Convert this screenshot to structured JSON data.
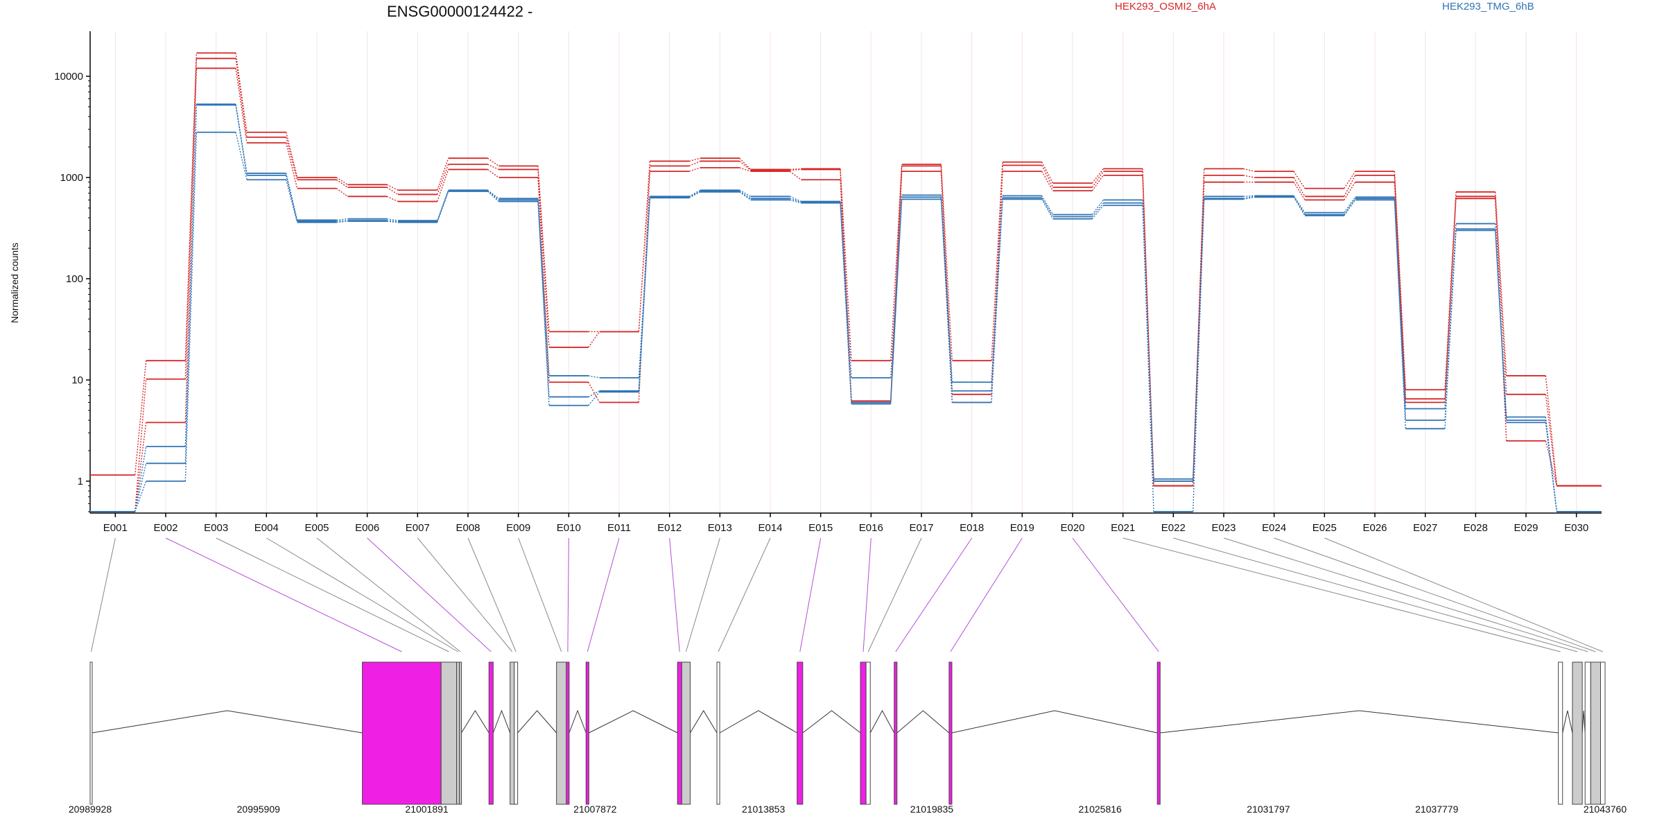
{
  "chart_data": {
    "type": "line",
    "title": "ENSG00000124422 -",
    "ylabel": "Normalized counts",
    "yscale": "log",
    "ylim": [
      0.45,
      25000
    ],
    "yticks": [
      1,
      10,
      100,
      1000,
      10000
    ],
    "ytick_labels": [
      "1",
      "10",
      "100",
      "1000",
      "10000"
    ],
    "legend": [
      {
        "name": "HEK293_OSMI2_6hA",
        "color": "#d62728"
      },
      {
        "name": "HEK293_TMG_6hB",
        "color": "#2f74b5"
      }
    ],
    "categories": [
      "E001",
      "E002",
      "E003",
      "E004",
      "E005",
      "E006",
      "E007",
      "E008",
      "E009",
      "E010",
      "E011",
      "E012",
      "E013",
      "E014",
      "E015",
      "E016",
      "E017",
      "E018",
      "E019",
      "E020",
      "E021",
      "E022",
      "E023",
      "E024",
      "E025",
      "E026",
      "E027",
      "E028",
      "E029",
      "E030"
    ],
    "series": [
      {
        "group": "HEK293_OSMI2_6hA",
        "color": "#d62728",
        "values": [
          1.15,
          15.5,
          17000,
          2800,
          1000,
          850,
          750,
          1550,
          1300,
          30,
          30,
          1450,
          1550,
          1200,
          1220,
          15.5,
          1350,
          15.5,
          1420,
          880,
          1220,
          1.0,
          1220,
          1150,
          780,
          1150,
          8.0,
          720,
          11,
          0.9
        ]
      },
      {
        "group": "HEK293_OSMI2_6hA",
        "color": "#d62728",
        "values": [
          0.5,
          10.2,
          15000,
          2500,
          950,
          800,
          680,
          1350,
          1200,
          21,
          30,
          1300,
          1450,
          1180,
          1200,
          6.2,
          1300,
          7.2,
          1320,
          800,
          1150,
          0.9,
          1050,
          1000,
          650,
          1050,
          6.5,
          650,
          7.2,
          0.9
        ]
      },
      {
        "group": "HEK293_OSMI2_6hA",
        "color": "#d62728",
        "values": [
          0.5,
          3.8,
          12000,
          2200,
          780,
          650,
          580,
          1200,
          1000,
          9.5,
          6.0,
          1150,
          1250,
          1150,
          950,
          6.0,
          1150,
          6.0,
          1150,
          740,
          1050,
          0.9,
          900,
          900,
          600,
          900,
          6.0,
          620,
          2.5,
          0.9
        ]
      },
      {
        "group": "HEK293_TMG_6hB",
        "color": "#2f74b5",
        "values": [
          0.5,
          2.2,
          5300,
          1100,
          380,
          390,
          375,
          750,
          620,
          11,
          10.5,
          650,
          750,
          650,
          580,
          10.5,
          670,
          9.5,
          660,
          430,
          600,
          1.05,
          650,
          660,
          450,
          640,
          5.2,
          350,
          4.3,
          0.5
        ]
      },
      {
        "group": "HEK293_TMG_6hB",
        "color": "#2f74b5",
        "values": [
          0.5,
          1.5,
          5200,
          1050,
          370,
          375,
          365,
          740,
          600,
          6.8,
          7.8,
          640,
          730,
          620,
          570,
          6.0,
          640,
          7.8,
          630,
          410,
          560,
          1.0,
          620,
          650,
          430,
          620,
          4.0,
          310,
          4.0,
          0.5
        ]
      },
      {
        "group": "HEK293_TMG_6hB",
        "color": "#2f74b5",
        "values": [
          0.5,
          1.0,
          2800,
          950,
          360,
          370,
          360,
          730,
          580,
          5.6,
          7.6,
          630,
          720,
          600,
          560,
          5.8,
          610,
          6.0,
          610,
          390,
          530,
          0.5,
          610,
          640,
          420,
          600,
          3.3,
          300,
          3.8,
          0.5
        ]
      }
    ],
    "gene_model": {
      "coordinate_labels": [
        "20989928",
        "20995909",
        "21001891",
        "21007872",
        "21013853",
        "21019835",
        "21025816",
        "21031797",
        "21037779",
        "21043760"
      ],
      "exons": [
        {
          "bin": "E001",
          "fill": "#ffffff",
          "start": 20989928,
          "end": 20990000
        },
        {
          "bin": "E002",
          "fill": "#f01fe4",
          "start": 20999600,
          "end": 21002400
        },
        {
          "bin": "E003",
          "fill": "#cccccc",
          "start": 21002400,
          "end": 21002950
        },
        {
          "bin": "E004",
          "fill": "#cccccc",
          "start": 21002950,
          "end": 21003050
        },
        {
          "bin": "E005",
          "fill": "#cccccc",
          "start": 21003050,
          "end": 21003120
        },
        {
          "bin": "E006",
          "fill": "#f01fe4",
          "start": 21004100,
          "end": 21004250
        },
        {
          "bin": "E007",
          "fill": "#cccccc",
          "start": 21004850,
          "end": 21005000
        },
        {
          "bin": "E008",
          "fill": "#ffffff",
          "start": 21005000,
          "end": 21005120
        },
        {
          "bin": "E009",
          "fill": "#cccccc",
          "start": 21006500,
          "end": 21006850
        },
        {
          "bin": "E010",
          "fill": "#f01fe4",
          "start": 21006850,
          "end": 21006950
        },
        {
          "bin": "E011",
          "fill": "#f01fe4",
          "start": 21007550,
          "end": 21007650
        },
        {
          "bin": "E012",
          "fill": "#f01fe4",
          "start": 21010800,
          "end": 21010950
        },
        {
          "bin": "E013",
          "fill": "#cccccc",
          "start": 21010950,
          "end": 21011250
        },
        {
          "bin": "E014",
          "fill": "#ffffff",
          "start": 21012200,
          "end": 21012300
        },
        {
          "bin": "E015",
          "fill": "#f01fe4",
          "start": 21015050,
          "end": 21015250
        },
        {
          "bin": "E016",
          "fill": "#f01fe4",
          "start": 21017300,
          "end": 21017500
        },
        {
          "bin": "E017",
          "fill": "#ffffff",
          "start": 21017500,
          "end": 21017650
        },
        {
          "bin": "E018",
          "fill": "#f01fe4",
          "start": 21018500,
          "end": 21018600
        },
        {
          "bin": "E019",
          "fill": "#f01fe4",
          "start": 21020450,
          "end": 21020550
        },
        {
          "bin": "E020",
          "fill": "#f01fe4",
          "start": 21027850,
          "end": 21027950
        },
        {
          "bin": "E021",
          "fill": "#ffffff",
          "start": 21042100,
          "end": 21042250
        },
        {
          "bin": "E022",
          "fill": "#cccccc",
          "start": 21042600,
          "end": 21042950
        },
        {
          "bin": "E023",
          "fill": "#ffffff",
          "start": 21043050,
          "end": 21043250
        },
        {
          "bin": "E024",
          "fill": "#cccccc",
          "start": 21043250,
          "end": 21043600
        },
        {
          "bin": "E025",
          "fill": "#ffffff",
          "start": 21043600,
          "end": 21043760
        }
      ]
    }
  }
}
